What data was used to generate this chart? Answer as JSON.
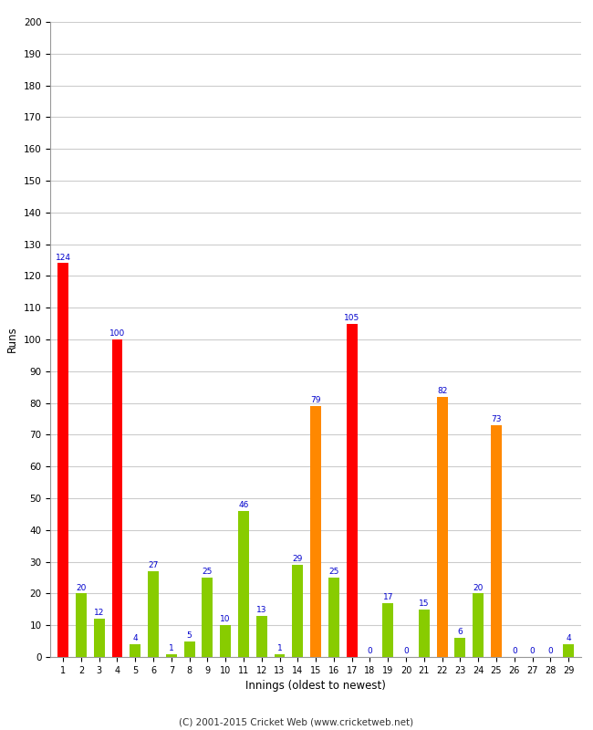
{
  "innings": [
    1,
    2,
    3,
    4,
    5,
    6,
    7,
    8,
    9,
    10,
    11,
    12,
    13,
    14,
    15,
    16,
    17,
    18,
    19,
    20,
    21,
    22,
    23,
    24,
    25,
    26,
    27,
    28,
    29
  ],
  "values": [
    124,
    20,
    12,
    100,
    4,
    27,
    1,
    5,
    25,
    10,
    46,
    13,
    1,
    29,
    79,
    25,
    105,
    0,
    17,
    0,
    15,
    82,
    6,
    20,
    73,
    0,
    0,
    0,
    4
  ],
  "colors": [
    "#ff0000",
    "#88cc00",
    "#88cc00",
    "#ff0000",
    "#88cc00",
    "#88cc00",
    "#88cc00",
    "#88cc00",
    "#88cc00",
    "#88cc00",
    "#88cc00",
    "#88cc00",
    "#88cc00",
    "#88cc00",
    "#ff8800",
    "#88cc00",
    "#ff0000",
    "#88cc00",
    "#88cc00",
    "#88cc00",
    "#88cc00",
    "#ff8800",
    "#88cc00",
    "#88cc00",
    "#ff8800",
    "#88cc00",
    "#88cc00",
    "#88cc00",
    "#88cc00"
  ],
  "xlabel": "Innings (oldest to newest)",
  "ylabel": "Runs",
  "ylim": [
    0,
    200
  ],
  "yticks": [
    0,
    10,
    20,
    30,
    40,
    50,
    60,
    70,
    80,
    90,
    100,
    110,
    120,
    130,
    140,
    150,
    160,
    170,
    180,
    190,
    200
  ],
  "background_color": "#ffffff",
  "grid_color": "#cccccc",
  "label_color": "#0000cc",
  "footer": "(C) 2001-2015 Cricket Web (www.cricketweb.net)",
  "bar_width": 0.6
}
